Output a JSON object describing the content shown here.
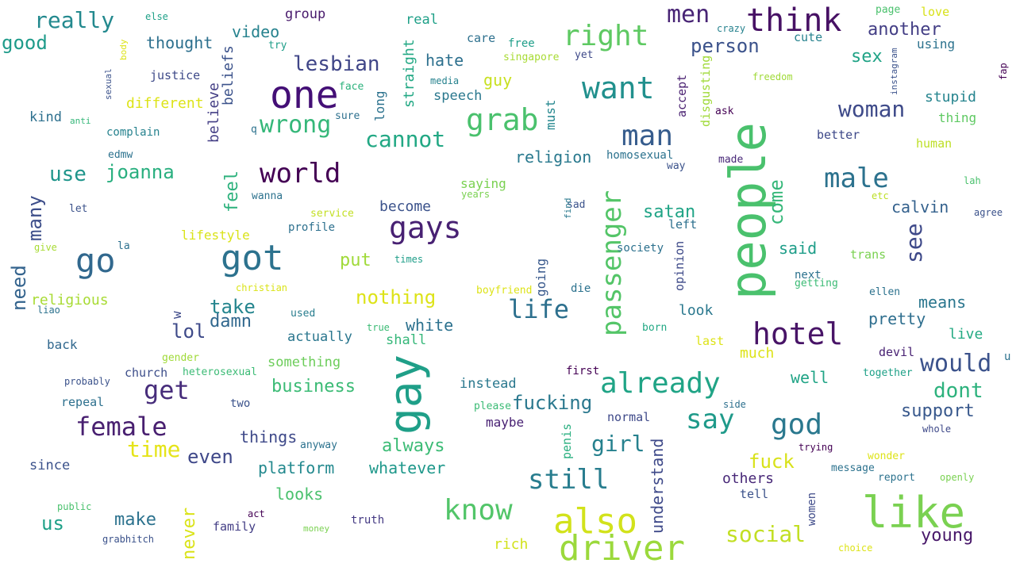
{
  "words": [
    {
      "text": "people",
      "color": "#4ac16d"
    },
    {
      "text": "gay",
      "color": "#1f9f88"
    },
    {
      "text": "one",
      "color": "#440f76"
    },
    {
      "text": "like",
      "color": "#7ad151"
    },
    {
      "text": "also",
      "color": "#d2e21b"
    },
    {
      "text": "got",
      "color": "#2c728e"
    },
    {
      "text": "driver",
      "color": "#9bd93c"
    },
    {
      "text": "think",
      "color": "#471164"
    },
    {
      "text": "hotel",
      "color": "#481467"
    },
    {
      "text": "gays",
      "color": "#482173"
    },
    {
      "text": "grab",
      "color": "#4ac16d"
    },
    {
      "text": "want",
      "color": "#21908d"
    },
    {
      "text": "already",
      "color": "#20a486"
    },
    {
      "text": "go",
      "color": "#31688e"
    },
    {
      "text": "right",
      "color": "#5ec962"
    },
    {
      "text": "man",
      "color": "#365c8d"
    },
    {
      "text": "know",
      "color": "#52c569"
    },
    {
      "text": "god",
      "color": "#2a788e"
    },
    {
      "text": "male",
      "color": "#2c728e"
    },
    {
      "text": "world",
      "color": "#440154"
    },
    {
      "text": "passenger",
      "color": "#54c568"
    },
    {
      "text": "still",
      "color": "#287d8e"
    },
    {
      "text": "say",
      "color": "#1f9a8a"
    },
    {
      "text": "female",
      "color": "#481f70"
    },
    {
      "text": "life",
      "color": "#2d708e"
    },
    {
      "text": "get",
      "color": "#472d7b"
    },
    {
      "text": "would",
      "color": "#3b528b"
    },
    {
      "text": "men",
      "color": "#482475"
    },
    {
      "text": "woman",
      "color": "#3e4a89"
    },
    {
      "text": "wrong",
      "color": "#35b779"
    },
    {
      "text": "cannot",
      "color": "#22a884"
    },
    {
      "text": "really",
      "color": "#23898e"
    },
    {
      "text": "lesbian",
      "color": "#404688"
    },
    {
      "text": "social",
      "color": "#c2df23"
    },
    {
      "text": "time",
      "color": "#e5e419"
    },
    {
      "text": "see",
      "color": "#3e4989"
    },
    {
      "text": "fucking",
      "color": "#2a788e"
    },
    {
      "text": "girl",
      "color": "#26818e"
    },
    {
      "text": "fuck",
      "color": "#d8e219"
    },
    {
      "text": "dont",
      "color": "#2db27d"
    },
    {
      "text": "many",
      "color": "#3d4e8a"
    },
    {
      "text": "need",
      "color": "#33638d"
    },
    {
      "text": "joanna",
      "color": "#29af7f"
    },
    {
      "text": "business",
      "color": "#3bbb75"
    },
    {
      "text": "person",
      "color": "#3b528b"
    },
    {
      "text": "another",
      "color": "#433e85"
    },
    {
      "text": "come",
      "color": "#35b779"
    },
    {
      "text": "nothing",
      "color": "#dde318"
    },
    {
      "text": "take",
      "color": "#25858e"
    },
    {
      "text": "support",
      "color": "#38588c"
    },
    {
      "text": "young",
      "color": "#48186a"
    },
    {
      "text": "use",
      "color": "#1f958b"
    },
    {
      "text": "good",
      "color": "#1e9b8a"
    },
    {
      "text": "lol",
      "color": "#3e4a89"
    },
    {
      "text": "even",
      "color": "#3f4889"
    },
    {
      "text": "damn",
      "color": "#31688e"
    },
    {
      "text": "sex",
      "color": "#20a386"
    },
    {
      "text": "satan",
      "color": "#20a486"
    },
    {
      "text": "always",
      "color": "#3bbb75"
    },
    {
      "text": "make",
      "color": "#2c728e"
    },
    {
      "text": "us",
      "color": "#1fa188"
    },
    {
      "text": "feel",
      "color": "#2db27d"
    },
    {
      "text": "never",
      "color": "#dae319"
    },
    {
      "text": "video",
      "color": "#26828e"
    },
    {
      "text": "thought",
      "color": "#2d708e"
    },
    {
      "text": "put",
      "color": "#a0da39"
    },
    {
      "text": "things",
      "color": "#3e4989"
    },
    {
      "text": "platform",
      "color": "#23898e"
    },
    {
      "text": "whatever",
      "color": "#1f988b"
    },
    {
      "text": "means",
      "color": "#2a768e"
    },
    {
      "text": "pretty",
      "color": "#2e6e8e"
    },
    {
      "text": "calvin",
      "color": "#34618d"
    },
    {
      "text": "said",
      "color": "#1f9e89"
    },
    {
      "text": "understand",
      "color": "#3e4989"
    },
    {
      "text": "hate",
      "color": "#2d708e"
    },
    {
      "text": "guy",
      "color": "#c8e020"
    },
    {
      "text": "white",
      "color": "#2c718e"
    },
    {
      "text": "religion",
      "color": "#29798e"
    },
    {
      "text": "beliefs",
      "color": "#3b528b"
    },
    {
      "text": "believe",
      "color": "#433e85"
    },
    {
      "text": "straight",
      "color": "#22a884"
    },
    {
      "text": "stupid",
      "color": "#25848e"
    },
    {
      "text": "looks",
      "color": "#4ac16d"
    },
    {
      "text": "others",
      "color": "#482878"
    },
    {
      "text": "live",
      "color": "#24aa83"
    },
    {
      "text": "well",
      "color": "#20a486"
    },
    {
      "text": "religious",
      "color": "#a8db34"
    },
    {
      "text": "different",
      "color": "#dde318"
    },
    {
      "text": "speech",
      "color": "#2a788e"
    },
    {
      "text": "become",
      "color": "#3b528b"
    },
    {
      "text": "something",
      "color": "#6ccd5a"
    },
    {
      "text": "lifestyle",
      "color": "#dae319"
    },
    {
      "text": "rich",
      "color": "#d2e21b"
    },
    {
      "text": "must",
      "color": "#24878e"
    },
    {
      "text": "actually",
      "color": "#2a768e"
    },
    {
      "text": "shall",
      "color": "#35b779"
    },
    {
      "text": "instead",
      "color": "#2a788e"
    },
    {
      "text": "saying",
      "color": "#7ad151"
    },
    {
      "text": "look",
      "color": "#2a788e"
    },
    {
      "text": "much",
      "color": "#dde318"
    },
    {
      "text": "kind",
      "color": "#2d708e"
    },
    {
      "text": "back",
      "color": "#31688e"
    },
    {
      "text": "since",
      "color": "#3b528b"
    },
    {
      "text": "family",
      "color": "#433e85"
    },
    {
      "text": "thing",
      "color": "#5ec962"
    },
    {
      "text": "human",
      "color": "#bddf26"
    },
    {
      "text": "using",
      "color": "#2c728e"
    },
    {
      "text": "love",
      "color": "#d8e219"
    },
    {
      "text": "group",
      "color": "#481a6c"
    },
    {
      "text": "real",
      "color": "#1fa088"
    },
    {
      "text": "justice",
      "color": "#3e4a89"
    },
    {
      "text": "cute",
      "color": "#26828e"
    },
    {
      "text": "care",
      "color": "#2d708e"
    },
    {
      "text": "long",
      "color": "#2c728e"
    },
    {
      "text": "accept",
      "color": "#481f70"
    },
    {
      "text": "disgusting",
      "color": "#a0da39"
    },
    {
      "text": "society",
      "color": "#2c718e"
    },
    {
      "text": "left",
      "color": "#2d708e"
    },
    {
      "text": "opinion",
      "color": "#3e4a89"
    },
    {
      "text": "going",
      "color": "#38588c"
    },
    {
      "text": "penis",
      "color": "#29af7f"
    },
    {
      "text": "normal",
      "color": "#3e4989"
    },
    {
      "text": "maybe",
      "color": "#482173"
    },
    {
      "text": "truth",
      "color": "#443983"
    },
    {
      "text": "women",
      "color": "#3e4a89"
    },
    {
      "text": "tell",
      "color": "#3b528b"
    },
    {
      "text": "trans",
      "color": "#7ad151"
    },
    {
      "text": "last",
      "color": "#dde318"
    },
    {
      "text": "devil",
      "color": "#482173"
    },
    {
      "text": "church",
      "color": "#3d4e8a"
    },
    {
      "text": "repeal",
      "color": "#2d708e"
    },
    {
      "text": "w",
      "color": "#3e4a89"
    },
    {
      "text": "better",
      "color": "#3e4989"
    },
    {
      "text": "next",
      "color": "#2c728e"
    },
    {
      "text": "getting",
      "color": "#3bbb75"
    },
    {
      "text": "ellen",
      "color": "#2c728e"
    },
    {
      "text": "together",
      "color": "#1fa188"
    },
    {
      "text": "homosexual",
      "color": "#2c728e"
    },
    {
      "text": "first",
      "color": "#440154"
    },
    {
      "text": "born",
      "color": "#22a884"
    },
    {
      "text": "profile",
      "color": "#2d708e"
    },
    {
      "text": "edmw",
      "color": "#2c728e"
    },
    {
      "text": "complain",
      "color": "#26828e"
    },
    {
      "text": "two",
      "color": "#3b528b"
    },
    {
      "text": "free",
      "color": "#1f9e89"
    },
    {
      "text": "try",
      "color": "#1f9e89"
    },
    {
      "text": "freedom",
      "color": "#a0da39"
    },
    {
      "text": "singapore",
      "color": "#a8db34"
    },
    {
      "text": "yet",
      "color": "#3e4989"
    },
    {
      "text": "crazy",
      "color": "#26828e"
    },
    {
      "text": "page",
      "color": "#4ac16d"
    },
    {
      "text": "face",
      "color": "#2db27d"
    },
    {
      "text": "media",
      "color": "#26828e"
    },
    {
      "text": "sure",
      "color": "#2d708e"
    },
    {
      "text": "ask",
      "color": "#440154"
    },
    {
      "text": "made",
      "color": "#482878"
    },
    {
      "text": "way",
      "color": "#3b528b"
    },
    {
      "text": "years",
      "color": "#7ad151"
    },
    {
      "text": "sad",
      "color": "#3b528b"
    },
    {
      "text": "find",
      "color": "#2a788e"
    },
    {
      "text": "service",
      "color": "#c2df23"
    },
    {
      "text": "christian",
      "color": "#dae319"
    },
    {
      "text": "times",
      "color": "#1f9e89"
    },
    {
      "text": "boyfriend",
      "color": "#dde318"
    },
    {
      "text": "die",
      "color": "#2c728e"
    },
    {
      "text": "used",
      "color": "#287d8e"
    },
    {
      "text": "true",
      "color": "#3bbb75"
    },
    {
      "text": "gender",
      "color": "#a0da39"
    },
    {
      "text": "heterosexual",
      "color": "#3bbb75"
    },
    {
      "text": "probably",
      "color": "#3b528b"
    },
    {
      "text": "please",
      "color": "#3bbb75"
    },
    {
      "text": "anyway",
      "color": "#2c728e"
    },
    {
      "text": "side",
      "color": "#2d708e"
    },
    {
      "text": "trying",
      "color": "#440154"
    },
    {
      "text": "message",
      "color": "#2c728e"
    },
    {
      "text": "report",
      "color": "#2c728e"
    },
    {
      "text": "openly",
      "color": "#7ad151"
    },
    {
      "text": "wonder",
      "color": "#dde318"
    },
    {
      "text": "whole",
      "color": "#3e4989"
    },
    {
      "text": "public",
      "color": "#4ac16d"
    },
    {
      "text": "act",
      "color": "#440154"
    },
    {
      "text": "money",
      "color": "#7ad151"
    },
    {
      "text": "grabhitch",
      "color": "#3b528b"
    },
    {
      "text": "choice",
      "color": "#dde318"
    },
    {
      "text": "liao",
      "color": "#2c728e"
    },
    {
      "text": "give",
      "color": "#a8db34"
    },
    {
      "text": "la",
      "color": "#2d708e"
    },
    {
      "text": "let",
      "color": "#3b528b"
    },
    {
      "text": "wanna",
      "color": "#2c728e"
    },
    {
      "text": "q",
      "color": "#2c728e"
    },
    {
      "text": "anti",
      "color": "#35b779"
    },
    {
      "text": "sexual",
      "color": "#3b528b"
    },
    {
      "text": "body",
      "color": "#dde318"
    },
    {
      "text": "else",
      "color": "#1fa188"
    },
    {
      "text": "instagram",
      "color": "#3b528b"
    },
    {
      "text": "fap",
      "color": "#440154"
    },
    {
      "text": "lah",
      "color": "#4ac16d"
    },
    {
      "text": "agree",
      "color": "#3b528b"
    },
    {
      "text": "etc",
      "color": "#bddf26"
    },
    {
      "text": "u",
      "color": "#2c728e"
    }
  ]
}
